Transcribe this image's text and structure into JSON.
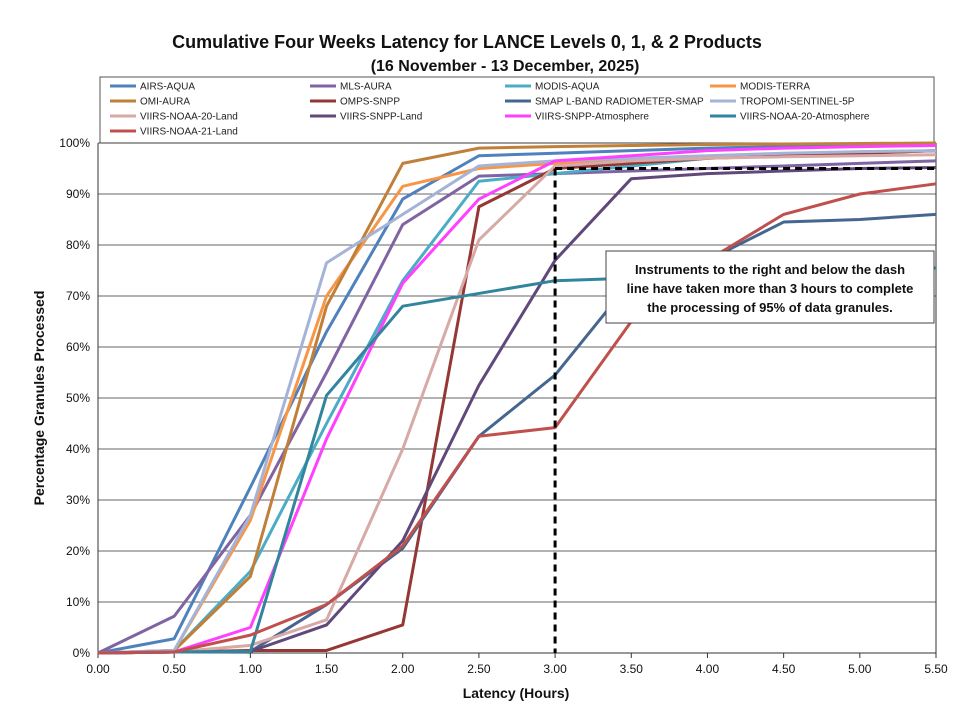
{
  "chart_data": {
    "type": "line",
    "title": "Cumulative Four Weeks Latency  for LANCE Levels 0, 1, & 2 Products",
    "subtitle": "(16  November   -  13  December,  2025)",
    "xlabel": "Latency (Hours)",
    "ylabel": "Percentage Granules Processed",
    "x": [
      0.0,
      0.5,
      1.0,
      1.5,
      2.0,
      2.5,
      3.0,
      3.5,
      4.0,
      4.5,
      5.0,
      5.5
    ],
    "xlim": [
      0,
      5.5
    ],
    "ylim": [
      0,
      100
    ],
    "xticks": [
      "0.00",
      "0.50",
      "1.00",
      "1.50",
      "2.00",
      "2.50",
      "3.00",
      "3.50",
      "4.00",
      "4.50",
      "5.00",
      "5.50"
    ],
    "yticks": [
      "0%",
      "10%",
      "20%",
      "30%",
      "40%",
      "50%",
      "60%",
      "70%",
      "80%",
      "90%",
      "100%"
    ],
    "grid": "horizontal",
    "legend_position": "top",
    "series": [
      {
        "name": "AIRS-AQUA",
        "color": "#4F81BD",
        "values": [
          0,
          2.8,
          32.5,
          63,
          89,
          97.5,
          98,
          98.5,
          99,
          99.3,
          99.5,
          99.7
        ]
      },
      {
        "name": "MLS-AURA",
        "color": "#8064A2",
        "values": [
          0,
          7.2,
          27,
          55,
          84,
          93.5,
          94,
          94.5,
          95,
          95.5,
          96,
          96.5
        ]
      },
      {
        "name": "MODIS-AQUA",
        "color": "#4BACC6",
        "values": [
          0,
          0.5,
          16,
          45,
          73,
          92.5,
          94,
          95.5,
          97,
          97.5,
          98,
          98.5
        ]
      },
      {
        "name": "MODIS-TERRA",
        "color": "#F79646",
        "values": [
          0,
          0.5,
          26,
          70,
          91.5,
          95,
          96,
          96.5,
          97,
          97.5,
          98,
          98.5
        ]
      },
      {
        "name": "OMI-AURA",
        "color": "#C0803A",
        "values": [
          0,
          0.5,
          15,
          68,
          96,
          99,
          99.3,
          99.5,
          99.7,
          99.8,
          99.9,
          100
        ]
      },
      {
        "name": "OMPS-SNPP",
        "color": "#953735",
        "values": [
          0,
          0.2,
          0.5,
          0.5,
          5.5,
          87.5,
          95,
          96,
          97,
          97.5,
          98,
          98.5
        ]
      },
      {
        "name": "SMAP L-BAND RADIOMETER-SMAP",
        "color": "#44668F",
        "values": [
          0,
          0.2,
          0.3,
          9.5,
          20.5,
          42.5,
          54.5,
          73,
          77,
          84.5,
          85,
          86
        ]
      },
      {
        "name": "TROPOMI-SENTINEL-5P",
        "color": "#A5B4D6",
        "values": [
          0,
          0.5,
          27,
          76.5,
          86,
          95.5,
          96.5,
          97,
          97.5,
          98,
          98.3,
          98.5
        ]
      },
      {
        "name": "VIIRS-NOAA-20-Land",
        "color": "#D7A9A7",
        "values": [
          0,
          0.2,
          1.5,
          6.5,
          40,
          81,
          95.5,
          96.5,
          97,
          97.3,
          97.5,
          97.7
        ]
      },
      {
        "name": "VIIRS-SNPP-Land",
        "color": "#60497A",
        "values": [
          0,
          0.2,
          0.3,
          5.5,
          22,
          52.5,
          77,
          93,
          94,
          94.5,
          95,
          95.2
        ]
      },
      {
        "name": "VIIRS-SNPP-Atmosphere",
        "color": "#FF40FF",
        "values": [
          0,
          0.2,
          5,
          42,
          72.5,
          89,
          96.5,
          97.5,
          98.5,
          99,
          99.3,
          99.5
        ]
      },
      {
        "name": "VIIRS-NOAA-20-Atmosphere",
        "color": "#31859C",
        "values": [
          0,
          0.2,
          0.3,
          50.5,
          68,
          70.5,
          73,
          73.5,
          74,
          74.5,
          75,
          75.5
        ]
      },
      {
        "name": "VIIRS-NOAA-21-Land",
        "color": "#C0504D",
        "values": [
          0,
          0.2,
          3.5,
          9.5,
          21,
          42.5,
          44.2,
          65,
          77,
          86,
          90,
          92
        ]
      }
    ],
    "threshold_line": {
      "value": 95,
      "x_from": 3.0,
      "x_to": 5.5,
      "style": "dashed",
      "color": "#000000"
    },
    "vertical_line": {
      "value": 3.0,
      "style": "dashed",
      "color": "#000000"
    },
    "annotation": {
      "lines": [
        "Instruments to the right and below the dash",
        "line have taken more than 3 hours to complete",
        "the processing of 95% of data granules."
      ]
    }
  }
}
